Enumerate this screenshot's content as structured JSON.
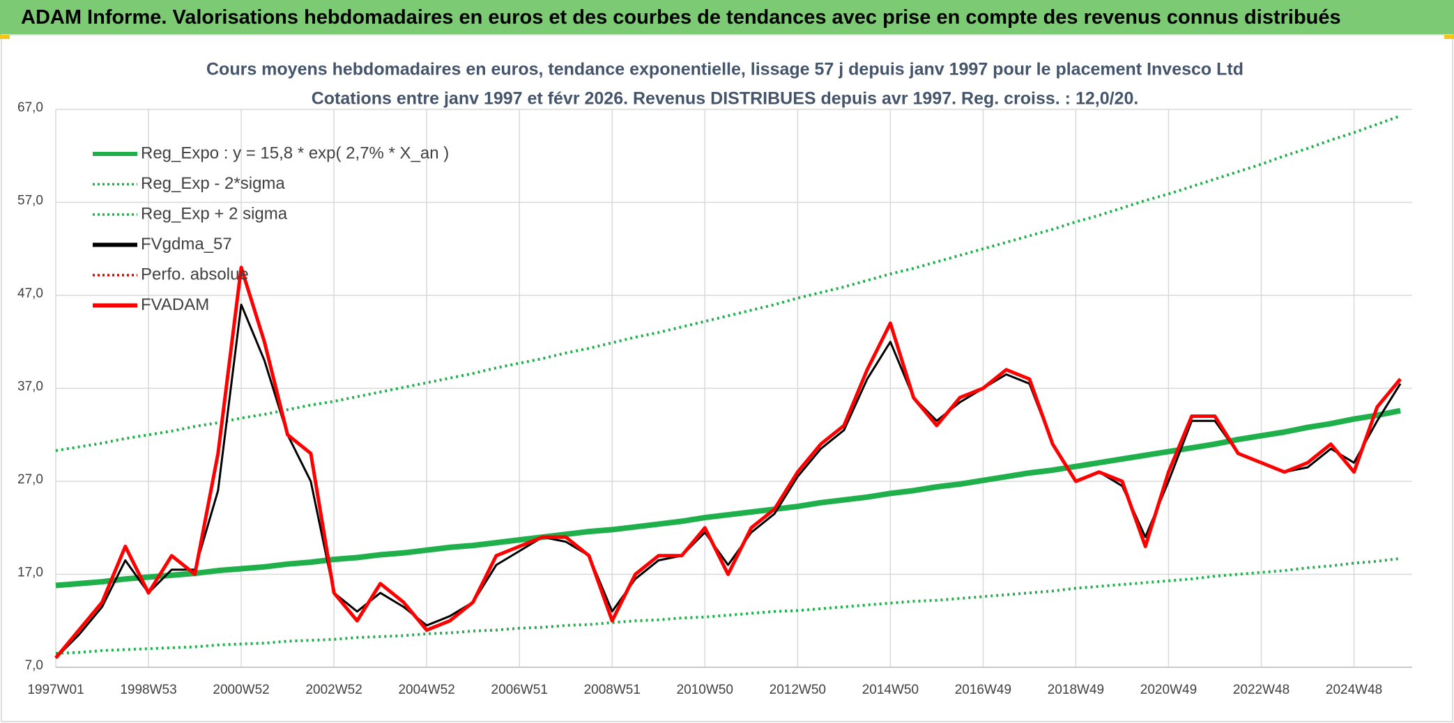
{
  "header": {
    "title": "ADAM Informe. Valorisations hebdomadaires en euros et des courbes de tendances avec prise en compte des revenus connus distribués"
  },
  "chart_data": {
    "type": "line",
    "title": "Cours moyens hebdomadaires en euros, tendance exponentielle, lissage 57 j depuis janv 1997 pour le placement Invesco Ltd",
    "subtitle": "Cotations entre janv 1997 et févr 2026. Revenus DISTRIBUES depuis avr 1997. Reg. croiss. : 12,0/20.",
    "categories": [
      "1997W01",
      null,
      null,
      null,
      "1998W53",
      null,
      null,
      null,
      "2000W52",
      null,
      null,
      null,
      "2002W52",
      null,
      null,
      null,
      "2004W52",
      null,
      null,
      null,
      "2006W51",
      null,
      null,
      null,
      "2008W51",
      null,
      null,
      null,
      "2010W50",
      null,
      null,
      null,
      "2012W50",
      null,
      null,
      null,
      "2014W50",
      null,
      null,
      null,
      "2016W49",
      null,
      null,
      null,
      "2018W49",
      null,
      null,
      null,
      "2020W49",
      null,
      null,
      null,
      "2022W48",
      null,
      null,
      null,
      "2024W48",
      null,
      null
    ],
    "ylim": [
      7,
      67
    ],
    "yticks": [
      {
        "value": 7,
        "label": "7,0"
      },
      {
        "value": 17,
        "label": "17,0"
      },
      {
        "value": 27,
        "label": "27,0"
      },
      {
        "value": 37,
        "label": "37,0"
      },
      {
        "value": 47,
        "label": "47,0"
      },
      {
        "value": 57,
        "label": "57,0"
      },
      {
        "value": 67,
        "label": "67,0"
      }
    ],
    "grid": true,
    "legend": "upper left",
    "series": [
      {
        "name": "Reg_Expo : y = 15,8 * exp( 2,7% *  X_an )",
        "color": "#1fb04c",
        "dashed": false,
        "values": [
          15.8,
          16.0,
          16.2,
          16.5,
          16.7,
          16.9,
          17.1,
          17.4,
          17.6,
          17.8,
          18.1,
          18.3,
          18.6,
          18.8,
          19.1,
          19.3,
          19.6,
          19.9,
          20.1,
          20.4,
          20.7,
          21.0,
          21.3,
          21.6,
          21.8,
          22.1,
          22.4,
          22.7,
          23.1,
          23.4,
          23.7,
          24.0,
          24.3,
          24.7,
          25.0,
          25.3,
          25.7,
          26.0,
          26.4,
          26.7,
          27.1,
          27.5,
          27.9,
          28.2,
          28.6,
          29.0,
          29.4,
          29.8,
          30.2,
          30.6,
          31.0,
          31.5,
          31.9,
          32.3,
          32.8,
          33.2,
          33.7,
          34.1,
          34.6
        ]
      },
      {
        "name": "Reg_Exp - 2*sigma",
        "color": "#1fb04c",
        "dashed": true,
        "values": [
          8.5,
          8.6,
          8.8,
          8.9,
          9.0,
          9.1,
          9.2,
          9.4,
          9.5,
          9.6,
          9.8,
          9.9,
          10.0,
          10.2,
          10.3,
          10.4,
          10.6,
          10.7,
          10.9,
          11.0,
          11.2,
          11.3,
          11.5,
          11.6,
          11.8,
          12.0,
          12.1,
          12.3,
          12.4,
          12.6,
          12.8,
          13.0,
          13.1,
          13.3,
          13.5,
          13.7,
          13.9,
          14.1,
          14.2,
          14.4,
          14.6,
          14.8,
          15.0,
          15.2,
          15.5,
          15.7,
          15.9,
          16.1,
          16.3,
          16.5,
          16.8,
          17.0,
          17.2,
          17.4,
          17.7,
          17.9,
          18.2,
          18.4,
          18.7
        ]
      },
      {
        "name": "Reg_Exp + 2 sigma",
        "color": "#1fb04c",
        "dashed": true,
        "values": [
          30.3,
          30.7,
          31.1,
          31.6,
          32.0,
          32.4,
          32.9,
          33.3,
          33.8,
          34.2,
          34.7,
          35.2,
          35.6,
          36.1,
          36.6,
          37.1,
          37.6,
          38.1,
          38.6,
          39.2,
          39.7,
          40.2,
          40.8,
          41.3,
          41.9,
          42.5,
          43.0,
          43.6,
          44.2,
          44.8,
          45.4,
          46.0,
          46.7,
          47.3,
          47.9,
          48.6,
          49.3,
          49.9,
          50.6,
          51.3,
          52.0,
          52.7,
          53.4,
          54.1,
          54.9,
          55.6,
          56.4,
          57.2,
          57.9,
          58.7,
          59.5,
          60.3,
          61.1,
          62.0,
          62.8,
          63.7,
          64.5,
          65.4,
          66.3
        ]
      },
      {
        "name": "FVgdma_57",
        "color": "#000000",
        "dashed": false,
        "values": [
          8,
          10.5,
          13.5,
          18.5,
          15,
          17.5,
          17.5,
          26,
          46,
          40,
          32,
          27,
          15,
          13,
          15,
          13.5,
          11.5,
          12.5,
          14,
          18,
          19.5,
          21,
          20.5,
          19,
          13,
          16.5,
          18.5,
          19,
          21.5,
          18,
          21.5,
          23.5,
          27.5,
          30.5,
          32.5,
          38,
          42,
          36,
          33.5,
          35.5,
          37,
          38.5,
          37.5,
          31,
          27,
          28,
          26.5,
          21,
          27,
          33.5,
          33.5,
          30,
          29,
          28,
          28.5,
          30.5,
          29,
          33.5,
          37.5
        ]
      },
      {
        "name": "Perfo. absolue",
        "color": "#e00000",
        "dashed": true,
        "values": [
          null,
          null,
          null,
          null,
          null,
          null,
          null,
          null,
          null,
          null,
          null,
          null,
          null,
          null,
          null,
          null,
          null,
          null,
          null,
          null,
          null,
          null,
          null,
          null,
          null,
          null,
          null,
          null,
          null,
          null,
          null,
          null,
          null,
          null,
          null,
          null,
          null,
          null,
          null,
          null,
          null,
          null,
          null,
          null,
          null,
          null,
          null,
          null,
          null,
          null,
          null,
          null,
          null,
          null,
          null,
          null,
          null,
          null,
          null
        ]
      },
      {
        "name": "FVADAM",
        "color": "#ff0000",
        "dashed": false,
        "values": [
          8,
          11,
          14,
          20,
          15,
          19,
          17,
          30,
          50,
          42,
          32,
          30,
          15,
          12,
          16,
          14,
          11,
          12,
          14,
          19,
          20,
          21,
          21,
          19,
          12,
          17,
          19,
          19,
          22,
          17,
          22,
          24,
          28,
          31,
          33,
          39,
          44,
          36,
          33,
          36,
          37,
          39,
          38,
          31,
          27,
          28,
          27,
          20,
          28,
          34,
          34,
          30,
          29,
          28,
          29,
          31,
          28,
          35,
          38
        ]
      }
    ]
  }
}
